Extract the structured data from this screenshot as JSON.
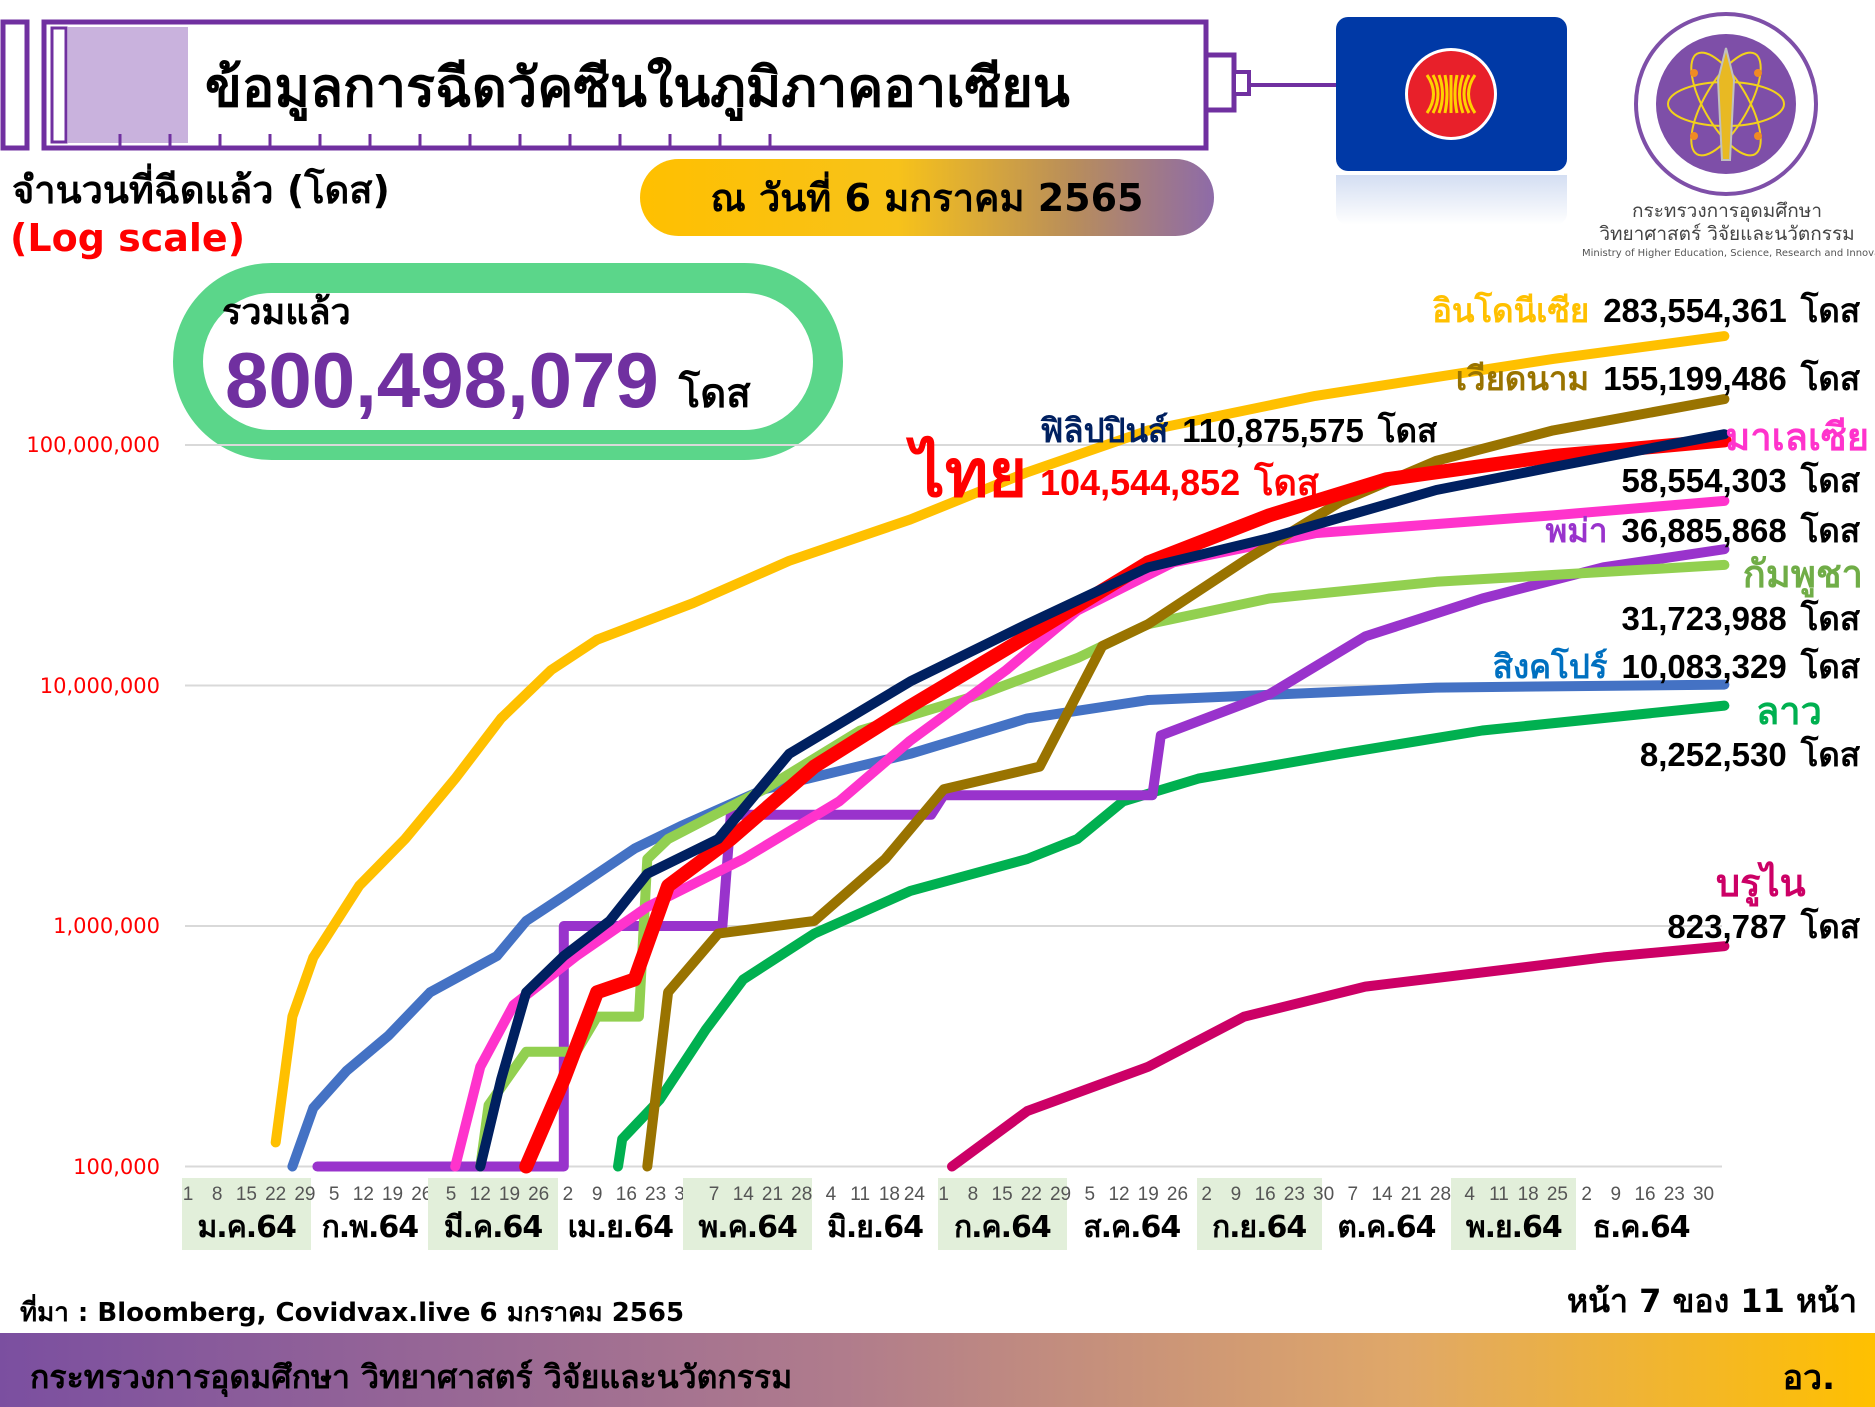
{
  "header": {
    "title": "ข้อมูลการฉีดวัคซีนในภูมิภาคอาเซียน",
    "date": "ณ วันที่ 6 มกราคม 2565",
    "ministry_logo_th_1": "กระทรวงการอุดมศึกษา",
    "ministry_logo_th_2": "วิทยาศาสตร์ วิจัยและนวัตกรรม",
    "ministry_logo_en": "Ministry of Higher Education, Science, Research and Innovation"
  },
  "total": {
    "label": "รวมแล้ว",
    "value": "800,498,079",
    "unit": "โดส"
  },
  "chart_data": {
    "type": "line",
    "ylabel": "จำนวนที่ฉีดแล้ว (โดส)",
    "ylabel_note": "(Log scale)",
    "yscale": "log",
    "ylim": [
      100000,
      300000000
    ],
    "yticks": [
      "100,000",
      "1,000,000",
      "10,000,000",
      "100,000,000"
    ],
    "ytick_values": [
      100000,
      1000000,
      10000000,
      100000000
    ],
    "grid": "horizontal",
    "xlim": [
      "2021-01-01",
      "2022-01-06"
    ],
    "x_months": [
      {
        "label": "ม.ค.64",
        "month": "2021-01",
        "days": [
          1,
          8,
          15,
          22,
          29
        ],
        "highlight": true
      },
      {
        "label": "ก.พ.64",
        "month": "2021-02",
        "days": [
          5,
          12,
          19,
          26
        ],
        "highlight": false
      },
      {
        "label": "มี.ค.64",
        "month": "2021-03",
        "days": [
          5,
          12,
          19,
          26
        ],
        "highlight": true
      },
      {
        "label": "เม.ย.64",
        "month": "2021-04",
        "days": [
          2,
          9,
          16,
          23,
          30
        ],
        "highlight": false
      },
      {
        "label": "พ.ค.64",
        "month": "2021-05",
        "days": [
          7,
          14,
          21,
          28
        ],
        "highlight": true
      },
      {
        "label": "มิ.ย.64",
        "month": "2021-06",
        "days": [
          4,
          11,
          18,
          24
        ],
        "highlight": false
      },
      {
        "label": "ก.ค.64",
        "month": "2021-07",
        "days": [
          1,
          8,
          15,
          22,
          29
        ],
        "highlight": true
      },
      {
        "label": "ส.ค.64",
        "month": "2021-08",
        "days": [
          5,
          12,
          19,
          26
        ],
        "highlight": false
      },
      {
        "label": "ก.ย.64",
        "month": "2021-09",
        "days": [
          2,
          9,
          16,
          23,
          30
        ],
        "highlight": true
      },
      {
        "label": "ต.ค.64",
        "month": "2021-10",
        "days": [
          7,
          14,
          21,
          28
        ],
        "highlight": false
      },
      {
        "label": "พ.ย.64",
        "month": "2021-11",
        "days": [
          4,
          11,
          18,
          25
        ],
        "highlight": true
      },
      {
        "label": "ธ.ค.64",
        "month": "2021-12",
        "days": [
          2,
          9,
          16,
          23,
          30
        ],
        "highlight": false
      }
    ],
    "unit": "โดส",
    "series": [
      {
        "name": "อินโดนีเซีย",
        "total": "283,554,361",
        "color": "#FFC000",
        "label_color": "#FFC000",
        "points": [
          [
            "2021-01-22",
            126000
          ],
          [
            "2021-01-26",
            420000
          ],
          [
            "2021-01-31",
            740000
          ],
          [
            "2021-02-11",
            1470000
          ],
          [
            "2021-02-22",
            2300000
          ],
          [
            "2021-03-06",
            4100000
          ],
          [
            "2021-03-17",
            7300000
          ],
          [
            "2021-03-29",
            11600000
          ],
          [
            "2021-04-09",
            15500000
          ],
          [
            "2021-05-02",
            22000000
          ],
          [
            "2021-05-25",
            33000000
          ],
          [
            "2021-06-23",
            49000000
          ],
          [
            "2021-07-21",
            77000000
          ],
          [
            "2021-08-19",
            115000000
          ],
          [
            "2021-09-28",
            160000000
          ],
          [
            "2021-11-24",
            228000000
          ],
          [
            "2022-01-04",
            283554361
          ]
        ]
      },
      {
        "name": "เวียดนาม",
        "total": "155,199,486",
        "color": "#997300",
        "label_color": "#997300",
        "points": [
          [
            "2021-04-21",
            100000
          ],
          [
            "2021-04-26",
            530000
          ],
          [
            "2021-05-08",
            930000
          ],
          [
            "2021-05-31",
            1050000
          ],
          [
            "2021-06-17",
            1900000
          ],
          [
            "2021-07-01",
            3700000
          ],
          [
            "2021-07-24",
            4600000
          ],
          [
            "2021-08-08",
            14600000
          ],
          [
            "2021-08-19",
            18000000
          ],
          [
            "2021-09-11",
            33000000
          ],
          [
            "2021-10-04",
            58000000
          ],
          [
            "2021-10-27",
            86000000
          ],
          [
            "2021-11-24",
            115000000
          ],
          [
            "2022-01-04",
            155199486
          ]
        ]
      },
      {
        "name": "ไทย",
        "total": "104,544,852",
        "color": "#FF0000",
        "label_color": "#FF0000",
        "points": [
          [
            "2021-03-23",
            100000
          ],
          [
            "2021-04-01",
            230000
          ],
          [
            "2021-04-09",
            530000
          ],
          [
            "2021-04-18",
            600000
          ],
          [
            "2021-04-26",
            1470000
          ],
          [
            "2021-05-11",
            2300000
          ],
          [
            "2021-05-31",
            4600000
          ],
          [
            "2021-06-23",
            8200000
          ],
          [
            "2021-07-21",
            16000000
          ],
          [
            "2021-08-19",
            32500000
          ],
          [
            "2021-09-17",
            51000000
          ],
          [
            "2021-10-15",
            72000000
          ],
          [
            "2021-11-24",
            90000000
          ],
          [
            "2022-01-04",
            104544852
          ]
        ]
      },
      {
        "name": "ฟิลิปปินส์",
        "total": "110,875,575",
        "color": "#002060",
        "label_color": "#002060",
        "points": [
          [
            "2021-03-12",
            100000
          ],
          [
            "2021-03-17",
            230000
          ],
          [
            "2021-03-23",
            530000
          ],
          [
            "2021-04-01",
            750000
          ],
          [
            "2021-04-12",
            1050000
          ],
          [
            "2021-04-21",
            1650000
          ],
          [
            "2021-05-08",
            2300000
          ],
          [
            "2021-05-25",
            5200000
          ],
          [
            "2021-06-23",
            10400000
          ],
          [
            "2021-07-21",
            18000000
          ],
          [
            "2021-08-19",
            31000000
          ],
          [
            "2021-09-17",
            41000000
          ],
          [
            "2021-10-27",
            65000000
          ],
          [
            "2021-11-24",
            81000000
          ],
          [
            "2022-01-04",
            110875575
          ]
        ]
      },
      {
        "name": "มาเลเซีย",
        "total": "58,554,303",
        "color": "#FF33CC",
        "label_color": "#FF33CC",
        "points": [
          [
            "2021-03-06",
            100000
          ],
          [
            "2021-03-12",
            260000
          ],
          [
            "2021-03-20",
            470000
          ],
          [
            "2021-04-04",
            750000
          ],
          [
            "2021-04-21",
            1200000
          ],
          [
            "2021-05-14",
            1900000
          ],
          [
            "2021-06-06",
            3300000
          ],
          [
            "2021-06-23",
            5900000
          ],
          [
            "2021-07-16",
            11600000
          ],
          [
            "2021-08-02",
            20500000
          ],
          [
            "2021-08-25",
            32500000
          ],
          [
            "2021-09-28",
            43000000
          ],
          [
            "2021-11-24",
            51000000
          ],
          [
            "2022-01-04",
            58554303
          ]
        ]
      },
      {
        "name": "พม่า",
        "total": "36,885,868",
        "color": "#9933CC",
        "label_color": "#9933CC",
        "points": [
          [
            "2021-02-01",
            100000
          ],
          [
            "2021-04-01",
            100000
          ],
          [
            "2021-04-01",
            1000000
          ],
          [
            "2021-05-09",
            1000000
          ],
          [
            "2021-05-11",
            2900000
          ],
          [
            "2021-06-28",
            2900000
          ],
          [
            "2021-07-01",
            3500000
          ],
          [
            "2021-08-20",
            3500000
          ],
          [
            "2021-08-22",
            6200000
          ],
          [
            "2021-09-17",
            9200000
          ],
          [
            "2021-10-10",
            16000000
          ],
          [
            "2021-11-07",
            23000000
          ],
          [
            "2021-12-06",
            31000000
          ],
          [
            "2022-01-04",
            36885868
          ]
        ]
      },
      {
        "name": "กัมพูชา",
        "total": "31,723,988",
        "color": "#92D050",
        "label_color": "#70AD47",
        "points": [
          [
            "2021-03-12",
            100000
          ],
          [
            "2021-03-14",
            180000
          ],
          [
            "2021-03-23",
            300000
          ],
          [
            "2021-04-04",
            300000
          ],
          [
            "2021-04-09",
            420000
          ],
          [
            "2021-04-19",
            420000
          ],
          [
            "2021-04-21",
            1900000
          ],
          [
            "2021-04-26",
            2300000
          ],
          [
            "2021-05-19",
            3700000
          ],
          [
            "2021-06-11",
            6500000
          ],
          [
            "2021-07-10",
            9200000
          ],
          [
            "2021-08-02",
            13000000
          ],
          [
            "2021-08-19",
            18000000
          ],
          [
            "2021-09-17",
            23000000
          ],
          [
            "2021-10-27",
            27000000
          ],
          [
            "2022-01-04",
            31723988
          ]
        ]
      },
      {
        "name": "สิงคโปร์",
        "total": "10,083,329",
        "color": "#4472C4",
        "label_color": "#0070C0",
        "points": [
          [
            "2021-01-26",
            100000
          ],
          [
            "2021-01-31",
            175000
          ],
          [
            "2021-02-08",
            250000
          ],
          [
            "2021-02-18",
            350000
          ],
          [
            "2021-02-28",
            530000
          ],
          [
            "2021-03-16",
            750000
          ],
          [
            "2021-03-23",
            1050000
          ],
          [
            "2021-04-01",
            1330000
          ],
          [
            "2021-04-18",
            2100000
          ],
          [
            "2021-04-29",
            2600000
          ],
          [
            "2021-05-19",
            3700000
          ],
          [
            "2021-06-23",
            5200000
          ],
          [
            "2021-07-21",
            7300000
          ],
          [
            "2021-08-19",
            8700000
          ],
          [
            "2021-10-27",
            9800000
          ],
          [
            "2022-01-04",
            10083329
          ]
        ]
      },
      {
        "name": "ลาว",
        "total": "8,252,530",
        "color": "#00B050",
        "label_color": "#00B050",
        "points": [
          [
            "2021-04-14",
            100000
          ],
          [
            "2021-04-15",
            130000
          ],
          [
            "2021-04-24",
            190000
          ],
          [
            "2021-05-05",
            370000
          ],
          [
            "2021-05-14",
            600000
          ],
          [
            "2021-05-31",
            930000
          ],
          [
            "2021-06-23",
            1400000
          ],
          [
            "2021-07-21",
            1900000
          ],
          [
            "2021-08-02",
            2300000
          ],
          [
            "2021-08-13",
            3300000
          ],
          [
            "2021-08-31",
            4100000
          ],
          [
            "2021-10-04",
            5200000
          ],
          [
            "2021-11-07",
            6500000
          ],
          [
            "2022-01-04",
            8252530
          ]
        ]
      },
      {
        "name": "บรูไน",
        "total": "823,787",
        "color": "#CC0066",
        "label_color": "#CC0066",
        "points": [
          [
            "2021-07-03",
            100000
          ],
          [
            "2021-07-21",
            170000
          ],
          [
            "2021-08-19",
            260000
          ],
          [
            "2021-09-11",
            420000
          ],
          [
            "2021-10-10",
            560000
          ],
          [
            "2021-11-13",
            660000
          ],
          [
            "2021-12-06",
            740000
          ],
          [
            "2022-01-04",
            823787
          ]
        ]
      }
    ]
  },
  "footer": {
    "source": "ที่มา : Bloomberg, Covidvax.live 6 มกราคม 2565",
    "page": "หน้า 7 ของ 11 หน้า",
    "ministry": "กระทรวงการอุดมศึกษา วิทยาศาสตร์ วิจัยและนวัตกรรม",
    "ministry_abbr": "อว."
  }
}
